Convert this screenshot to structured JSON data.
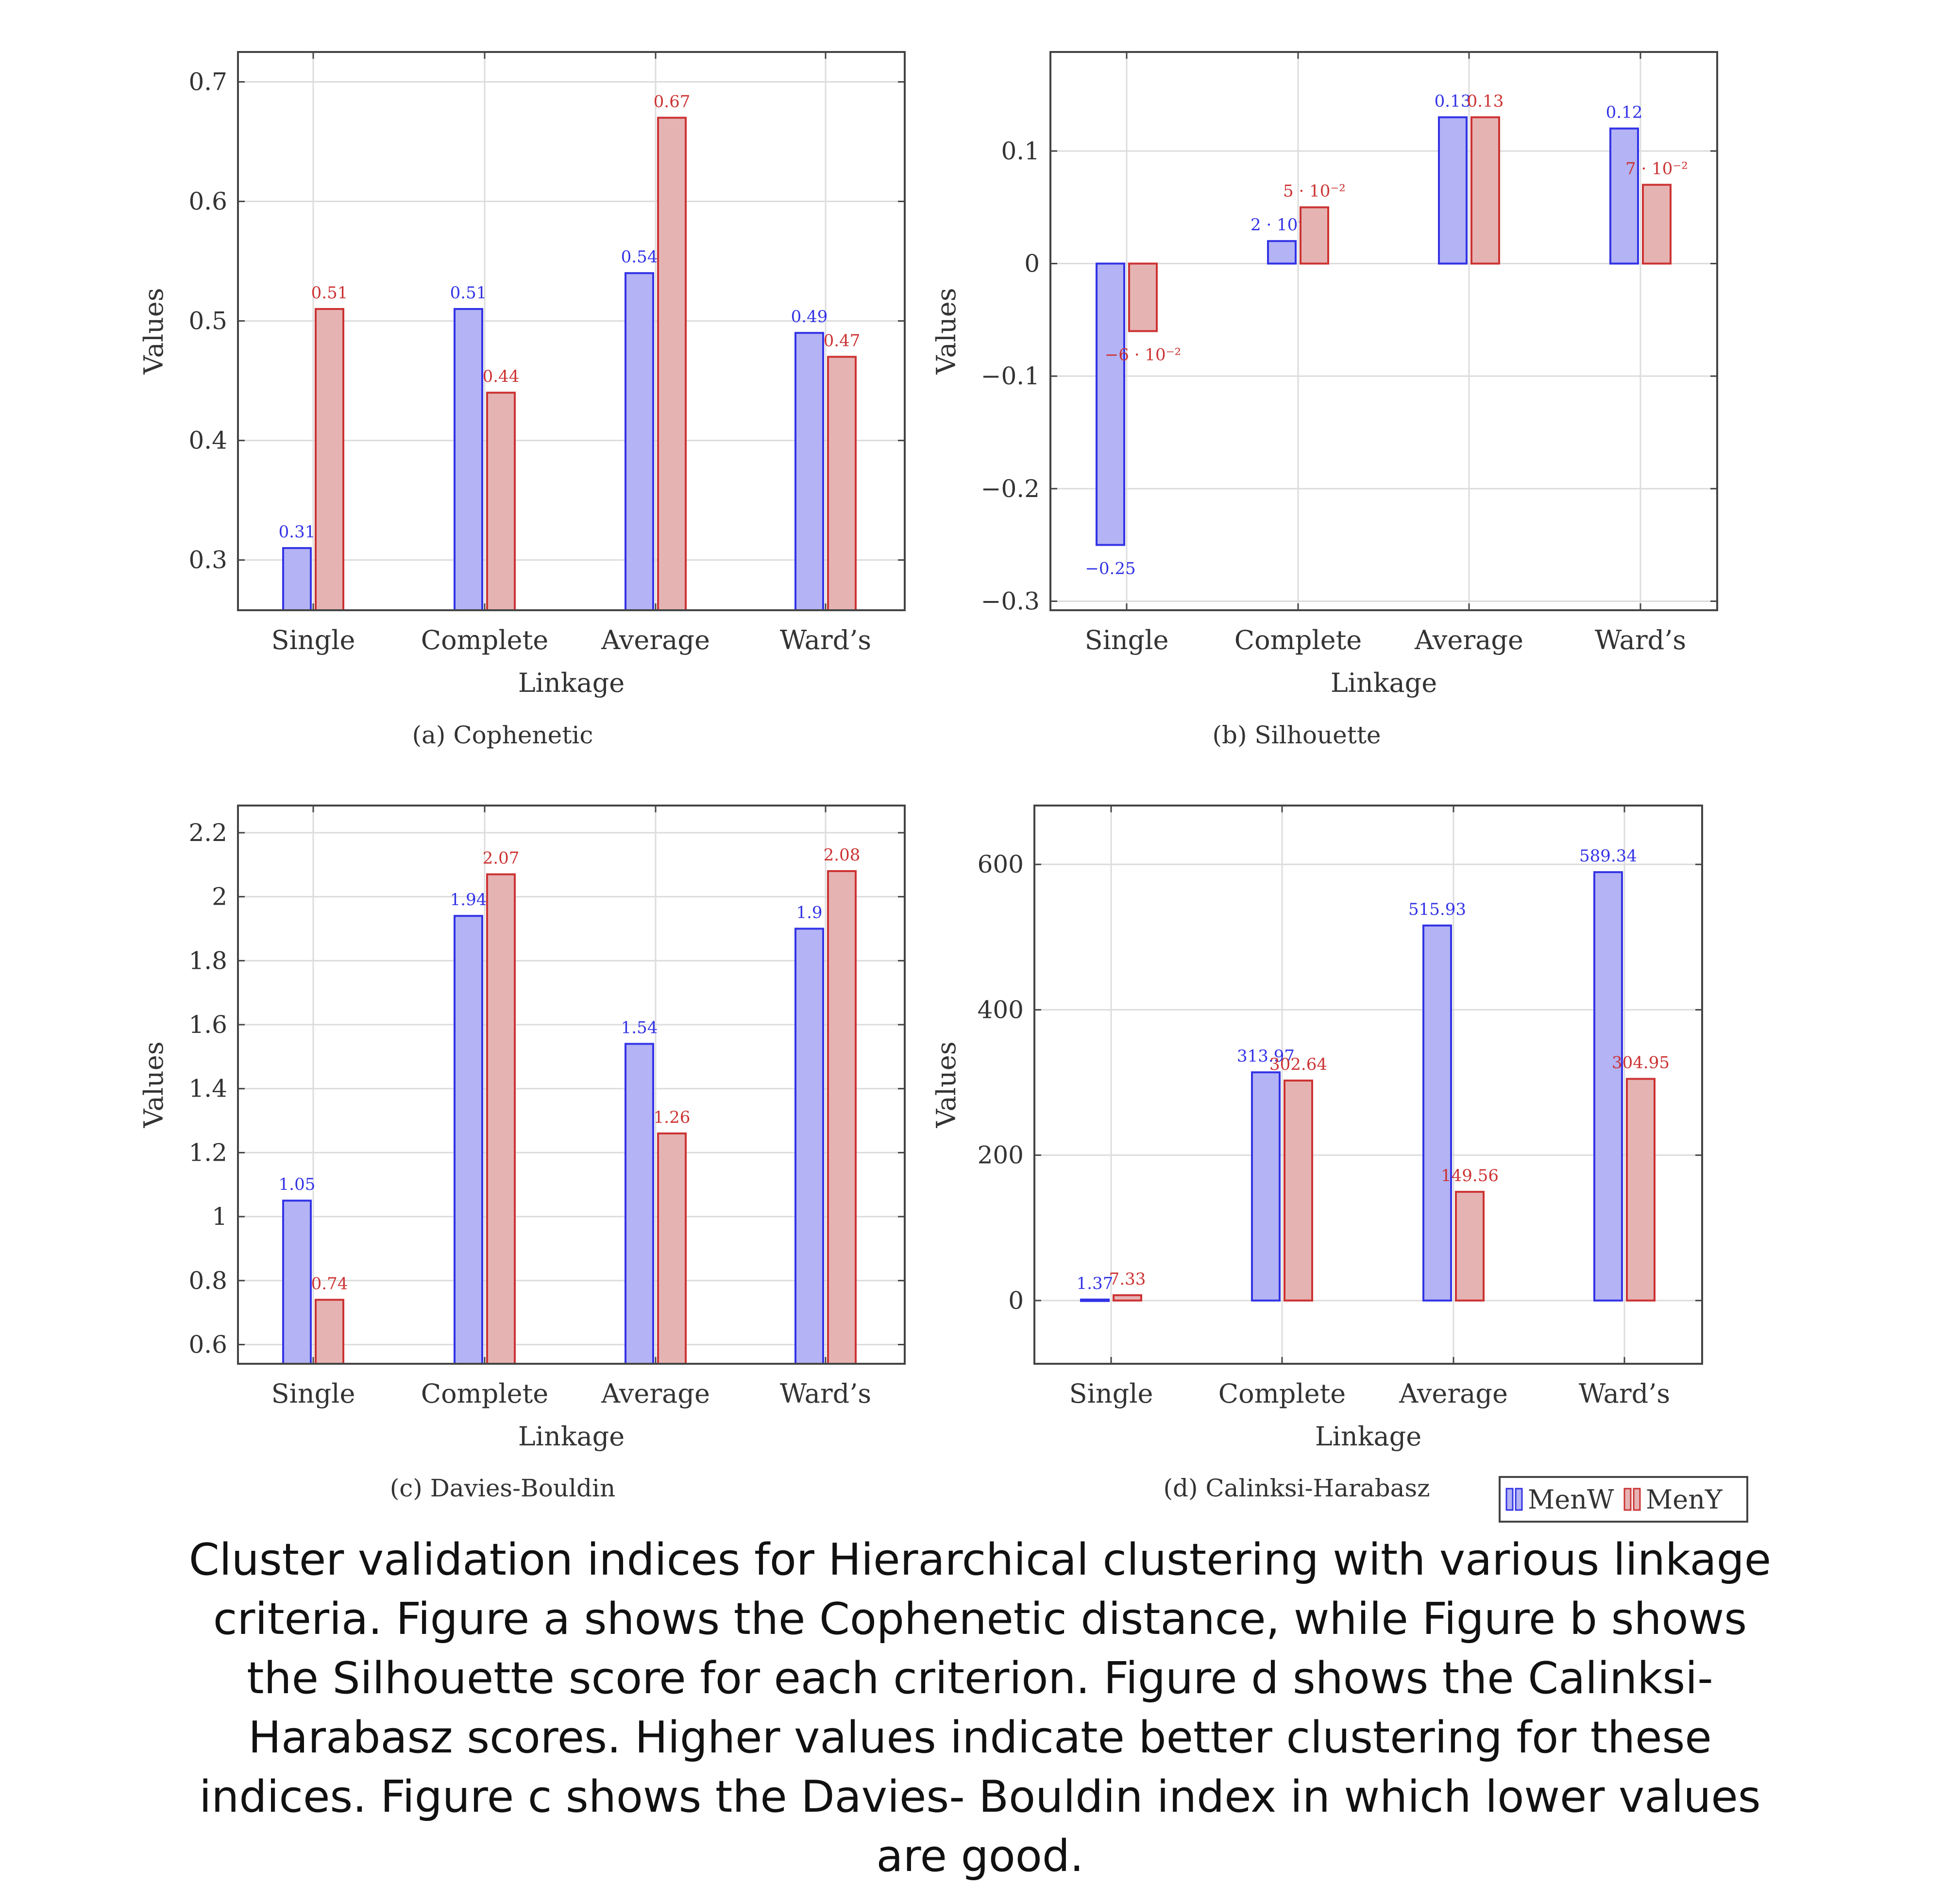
{
  "legend": {
    "entries": [
      {
        "name": "MenW",
        "fill": "#b3b3f5",
        "stroke": "#3333e6"
      },
      {
        "name": "MenY",
        "fill": "#e6b3b3",
        "stroke": "#cc3333"
      }
    ],
    "placement": "bottom-right, below panel d"
  },
  "colors": {
    "menw_fill": "#b3b3f5",
    "menw_stroke": "#3333e6",
    "menw_label": "#3333e6",
    "meny_fill": "#e6b3b3",
    "meny_stroke": "#cc3333",
    "meny_label": "#cc3333",
    "grid": "#dcdcdc",
    "axis": "#444444",
    "text": "#333333"
  },
  "caption": "Cluster validation indices for Hierarchical clustering with various linkage criteria. Figure a shows the Cophenetic distance, while Figure b shows the Silhouette score for each criterion. Figure d shows the Calinksi-Harabasz scores. Higher values indicate better clustering for these indices. Figure c shows the Davies- Bouldin index in which lower values are good.",
  "chart_data": [
    {
      "type": "bar",
      "subcaption": "(a) Cophenetic",
      "title": "",
      "xlabel": "Linkage",
      "ylabel": "Values",
      "categories": [
        "Single",
        "Complete",
        "Average",
        "Ward’s"
      ],
      "series": [
        {
          "name": "MenW",
          "values": [
            0.31,
            0.51,
            0.54,
            0.49
          ],
          "labels": [
            "0.31",
            "0.51",
            "0.54",
            "0.49"
          ]
        },
        {
          "name": "MenY",
          "values": [
            0.51,
            0.44,
            0.67,
            0.47
          ],
          "labels": [
            "0.51",
            "0.44",
            "0.67",
            "0.47"
          ]
        }
      ],
      "ylim": [
        0.258,
        0.725
      ],
      "yticks": [
        0.3,
        0.4,
        0.5,
        0.6,
        0.7
      ],
      "yticklabels": [
        "0.3",
        "0.4",
        "0.5",
        "0.6",
        "0.7"
      ],
      "grid": true
    },
    {
      "type": "bar",
      "subcaption": "(b) Silhouette",
      "title": "",
      "xlabel": "Linkage",
      "ylabel": "Values",
      "categories": [
        "Single",
        "Complete",
        "Average",
        "Ward’s"
      ],
      "series": [
        {
          "name": "MenW",
          "values": [
            -0.25,
            0.02,
            0.13,
            0.12
          ],
          "labels": [
            "−0.25",
            "2 · 10⁻²",
            "0.13",
            "0.12"
          ]
        },
        {
          "name": "MenY",
          "values": [
            -0.06,
            0.05,
            0.13,
            0.07
          ],
          "labels": [
            "−6 · 10⁻²",
            "5 · 10⁻²",
            "0.13",
            "7 · 10⁻²"
          ]
        }
      ],
      "ylim": [
        -0.308,
        0.188
      ],
      "yticks": [
        -0.3,
        -0.2,
        -0.1,
        0,
        0.1
      ],
      "yticklabels": [
        "−0.3",
        "−0.2",
        "−0.1",
        "0",
        "0.1"
      ],
      "grid": true
    },
    {
      "type": "bar",
      "subcaption": "(c) Davies-Bouldin",
      "title": "",
      "xlabel": "Linkage",
      "ylabel": "Values",
      "categories": [
        "Single",
        "Complete",
        "Average",
        "Ward’s"
      ],
      "series": [
        {
          "name": "MenW",
          "values": [
            1.05,
            1.94,
            1.54,
            1.9
          ],
          "labels": [
            "1.05",
            "1.94",
            "1.54",
            "1.9"
          ]
        },
        {
          "name": "MenY",
          "values": [
            0.74,
            2.07,
            1.26,
            2.08
          ],
          "labels": [
            "0.74",
            "2.07",
            "1.26",
            "2.08"
          ]
        }
      ],
      "ylim": [
        0.54,
        2.285
      ],
      "yticks": [
        0.6,
        0.8,
        1,
        1.2,
        1.4,
        1.6,
        1.8,
        2,
        2.2
      ],
      "yticklabels": [
        "0.6",
        "0.8",
        "1",
        "1.2",
        "1.4",
        "1.6",
        "1.8",
        "2",
        "2.2"
      ],
      "grid": true
    },
    {
      "type": "bar",
      "subcaption": "(d) Calinksi-Harabasz",
      "title": "",
      "xlabel": "Linkage",
      "ylabel": "Values",
      "categories": [
        "Single",
        "Complete",
        "Average",
        "Ward’s"
      ],
      "series": [
        {
          "name": "MenW",
          "values": [
            1.37,
            313.97,
            515.93,
            589.34
          ],
          "labels": [
            "1.37",
            "313.97",
            "515.93",
            "589.34"
          ]
        },
        {
          "name": "MenY",
          "values": [
            7.33,
            302.64,
            149.56,
            304.95
          ],
          "labels": [
            "7.33",
            "302.64",
            "149.56",
            "304.95"
          ]
        }
      ],
      "ylim": [
        -87,
        681
      ],
      "yticks": [
        0,
        200,
        400,
        600
      ],
      "yticklabels": [
        "0",
        "200",
        "400",
        "600"
      ],
      "grid": true
    }
  ]
}
